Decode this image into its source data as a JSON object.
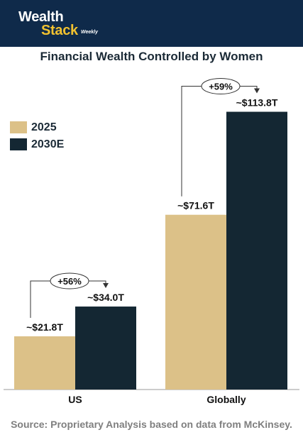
{
  "brand": {
    "name_line1": "Wealth",
    "name_line2": "Stack",
    "tagline": "Weekly"
  },
  "source": "Source: Proprietary Analysis based on data from McKinsey.",
  "colors": {
    "header": "#0f2a4a",
    "accent": "#f2c230",
    "series_2025": "#dcc188",
    "series_2030": "#142733"
  },
  "chart_data": {
    "type": "bar",
    "title": "Financial Wealth Controlled by Women",
    "categories": [
      "US",
      "Globally"
    ],
    "series": [
      {
        "name": "2025",
        "values": [
          21.8,
          71.6
        ],
        "labels": [
          "~$21.8T",
          "~$71.6T"
        ]
      },
      {
        "name": "2030E",
        "values": [
          34.0,
          113.8
        ],
        "labels": [
          "~$34.0T",
          "~$113.8T"
        ]
      }
    ],
    "annotations": [
      "+56%",
      "+59%"
    ],
    "legend": "top-left",
    "ylim": [
      0,
      125
    ],
    "grid": false
  }
}
